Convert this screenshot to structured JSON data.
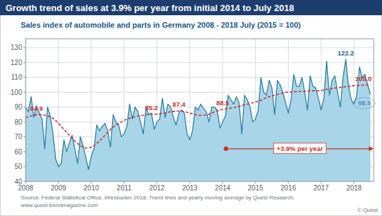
{
  "chart_data": {
    "type": "line",
    "title": "Growth trend of sales at 3.9% per year from initial 2014 to July 2018",
    "subtitle": "Sales index of automobile and parts in Germany 2008 - 2018 July (2015 = 100)",
    "source": [
      "Source: Federal Statistical Office, Wiesbaden 2018. Trend lines and yearly moving average by Quest Research.",
      "www.quest-trendmagazine.com"
    ],
    "copyright": "© Quest",
    "x": [
      2008,
      2008.083,
      2008.167,
      2008.25,
      2008.333,
      2008.417,
      2008.5,
      2008.583,
      2008.667,
      2008.75,
      2008.833,
      2008.917,
      2009,
      2009.083,
      2009.167,
      2009.25,
      2009.333,
      2009.417,
      2009.5,
      2009.583,
      2009.667,
      2009.75,
      2009.833,
      2009.917,
      2010,
      2010.083,
      2010.167,
      2010.25,
      2010.333,
      2010.417,
      2010.5,
      2010.583,
      2010.667,
      2010.75,
      2010.833,
      2010.917,
      2011,
      2011.083,
      2011.167,
      2011.25,
      2011.333,
      2011.417,
      2011.5,
      2011.583,
      2011.667,
      2011.75,
      2011.833,
      2011.917,
      2012,
      2012.083,
      2012.167,
      2012.25,
      2012.333,
      2012.417,
      2012.5,
      2012.583,
      2012.667,
      2012.75,
      2012.833,
      2012.917,
      2013,
      2013.083,
      2013.167,
      2013.25,
      2013.333,
      2013.417,
      2013.5,
      2013.583,
      2013.667,
      2013.75,
      2013.833,
      2013.917,
      2014,
      2014.083,
      2014.167,
      2014.25,
      2014.333,
      2014.417,
      2014.5,
      2014.583,
      2014.667,
      2014.75,
      2014.833,
      2014.917,
      2015,
      2015.083,
      2015.167,
      2015.25,
      2015.333,
      2015.417,
      2015.5,
      2015.583,
      2015.667,
      2015.75,
      2015.833,
      2015.917,
      2016,
      2016.083,
      2016.167,
      2016.25,
      2016.333,
      2016.417,
      2016.5,
      2016.583,
      2016.667,
      2016.75,
      2016.833,
      2016.917,
      2017,
      2017.083,
      2017.167,
      2017.25,
      2017.333,
      2017.417,
      2017.5,
      2017.583,
      2017.667,
      2017.75,
      2017.833,
      2017.917,
      2018,
      2018.083,
      2018.167,
      2018.25,
      2018.333,
      2018.417,
      2018.5
    ],
    "series": [
      {
        "color": "#c8342a",
        "line_style": "dashed",
        "values": [
          83,
          83.5,
          84,
          84.5,
          84.9,
          84.9,
          84.9,
          84.5,
          84,
          83.5,
          82.5,
          81,
          79,
          77,
          75,
          73,
          71,
          69,
          67,
          65.5,
          64,
          63,
          62.5,
          62.5,
          63,
          64,
          65.5,
          67,
          69,
          71,
          73,
          75,
          76.5,
          78,
          79,
          80,
          81,
          82,
          82.5,
          83,
          83.5,
          84,
          84.5,
          84.5,
          85,
          85,
          85.2,
          85.2,
          85.2,
          85.5,
          86,
          86,
          86.5,
          87,
          87,
          87.2,
          87.4,
          87.4,
          87,
          86.5,
          86,
          85.5,
          85,
          84.6,
          84.5,
          84.5,
          84.8,
          85.2,
          86,
          86.8,
          87.5,
          88,
          88.5,
          88.7,
          89,
          89.3,
          89.6,
          90,
          90.5,
          91,
          91.5,
          92,
          92.5,
          93,
          93.5,
          94,
          94.5,
          95.5,
          96.5,
          97,
          97.5,
          98,
          98.5,
          99,
          99.5,
          100,
          100,
          100.2,
          100.3,
          100.4,
          100.5,
          100.5,
          100.6,
          100.8,
          101,
          101,
          101,
          101,
          101.2,
          101.5,
          102,
          102.2,
          102.5,
          102.8,
          103,
          103.2,
          103.5,
          103.8,
          104,
          104.2,
          104.4,
          104.5,
          104.6,
          104.8,
          104.9,
          105,
          105.0
        ]
      },
      {
        "color": "#2b7ea5",
        "type": "area",
        "values": [
          90,
          87,
          97,
          83,
          91,
          86,
          82,
          62,
          90,
          84,
          72,
          55,
          50,
          52,
          68,
          60,
          66,
          71,
          62,
          52,
          70,
          64,
          56,
          48,
          57,
          62,
          78,
          74,
          77,
          79,
          74,
          63,
          85,
          80,
          78,
          70,
          72,
          77,
          92,
          82,
          90,
          87,
          80,
          72,
          90,
          85,
          86,
          75,
          80,
          82,
          96,
          83,
          92,
          90,
          83,
          78,
          86,
          88,
          86,
          72,
          68,
          74,
          90,
          88,
          92,
          89,
          87,
          80,
          90,
          90,
          88,
          76,
          80,
          84,
          98,
          95,
          92,
          97,
          93,
          72,
          98,
          95,
          90,
          80,
          82,
          88,
          110,
          100,
          98,
          108,
          103,
          85,
          108,
          105,
          100,
          93,
          86,
          95,
          112,
          104,
          104,
          110,
          100,
          88,
          111,
          104,
          103,
          96,
          88,
          96,
          121,
          98,
          108,
          111,
          100,
          90,
          110,
          122.2,
          104,
          95,
          92,
          98,
          117,
          110,
          112,
          105,
          98.5
        ]
      }
    ],
    "annotations": [
      {
        "label": "84.9",
        "x": 2008.333,
        "y": 84.9,
        "color": "#c8342a"
      },
      {
        "label": "85.2",
        "x": 2011.833,
        "y": 85.2,
        "color": "#c8342a"
      },
      {
        "label": "87.4",
        "x": 2012.667,
        "y": 87.4,
        "color": "#c8342a"
      },
      {
        "label": "88.5",
        "x": 2014,
        "y": 88.5,
        "color": "#c8342a"
      },
      {
        "label": "122.2",
        "x": 2017.75,
        "y": 122.2,
        "color": "#1c5a8c"
      },
      {
        "label": "105.0",
        "x": 2018.5,
        "y": 105.0,
        "color": "#c8342a"
      },
      {
        "label": "98.5",
        "x": 2018.5,
        "y": 98.5,
        "color": "#5b8cc0"
      }
    ],
    "trend": {
      "label": "+3.9% per year",
      "x": [
        2014.1,
        2018.6
      ],
      "y": 62,
      "color": "#c8342a"
    },
    "xlim": [
      2008,
      2018.6
    ],
    "xticks": [
      2008,
      2009,
      2010,
      2011,
      2012,
      2013,
      2014,
      2015,
      2016,
      2017,
      2018
    ],
    "ylim": [
      40,
      136
    ],
    "yticks": [
      40,
      50,
      60,
      70,
      80,
      90,
      100,
      110,
      120,
      130
    ],
    "grid": true
  }
}
